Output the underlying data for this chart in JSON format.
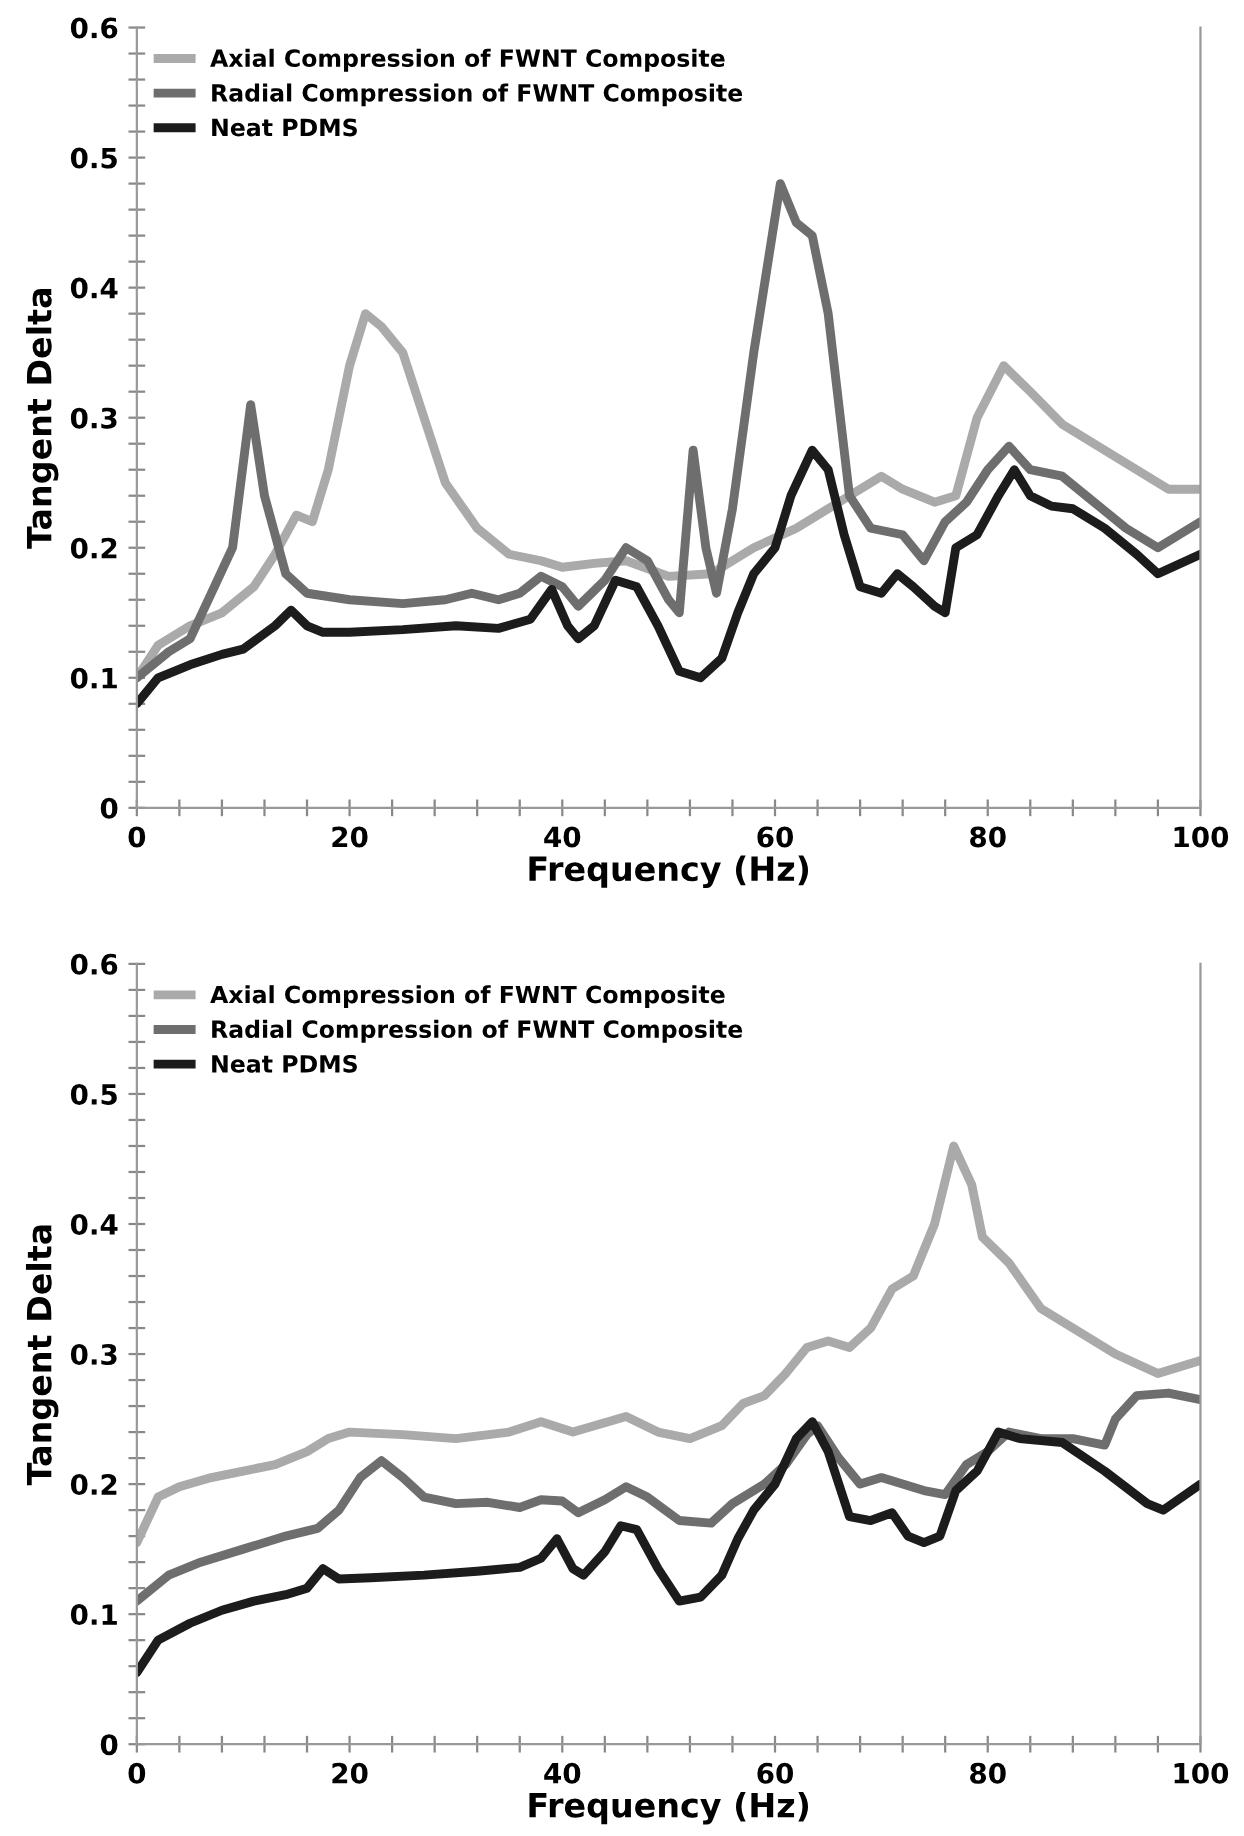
{
  "chart_data": [
    {
      "type": "line",
      "xlabel": "Frequency (Hz)",
      "ylabel": "Tangent Delta",
      "xlim": [
        0,
        100
      ],
      "ylim": [
        0,
        0.6
      ],
      "xticks": [
        0,
        {
          "value": 4,
          "label": null
        },
        {
          "value": 8,
          "label": null
        },
        {
          "value": 12,
          "label": null
        },
        {
          "value": 16,
          "label": null
        },
        20,
        {
          "value": 24,
          "label": null
        },
        {
          "value": 28,
          "label": null
        },
        {
          "value": 32,
          "label": null
        },
        {
          "value": 36,
          "label": null
        },
        40,
        {
          "value": 44,
          "label": null
        },
        {
          "value": 48,
          "label": null
        },
        {
          "value": 52,
          "label": null
        },
        {
          "value": 56,
          "label": null
        },
        60,
        {
          "value": 64,
          "label": null
        },
        {
          "value": 68,
          "label": null
        },
        {
          "value": 72,
          "label": null
        },
        {
          "value": 76,
          "label": null
        },
        80,
        {
          "value": 84,
          "label": null
        },
        {
          "value": 88,
          "label": null
        },
        {
          "value": 92,
          "label": null
        },
        {
          "value": 96,
          "label": null
        },
        100
      ],
      "yticks": [
        0,
        {
          "value": 0.02,
          "label": null
        },
        {
          "value": 0.04,
          "label": null
        },
        {
          "value": 0.06,
          "label": null
        },
        {
          "value": 0.08,
          "label": null
        },
        0.1,
        {
          "value": 0.12,
          "label": null
        },
        {
          "value": 0.14,
          "label": null
        },
        {
          "value": 0.16,
          "label": null
        },
        {
          "value": 0.18,
          "label": null
        },
        0.2,
        {
          "value": 0.22,
          "label": null
        },
        {
          "value": 0.24,
          "label": null
        },
        {
          "value": 0.26,
          "label": null
        },
        {
          "value": 0.28,
          "label": null
        },
        0.3,
        {
          "value": 0.32,
          "label": null
        },
        {
          "value": 0.34,
          "label": null
        },
        {
          "value": 0.36,
          "label": null
        },
        {
          "value": 0.38,
          "label": null
        },
        0.4,
        {
          "value": 0.42,
          "label": null
        },
        {
          "value": 0.44,
          "label": null
        },
        {
          "value": 0.46,
          "label": null
        },
        {
          "value": 0.48,
          "label": null
        },
        0.5,
        {
          "value": 0.52,
          "label": null
        },
        {
          "value": 0.54,
          "label": null
        },
        {
          "value": 0.56,
          "label": null
        },
        {
          "value": 0.58,
          "label": null
        },
        0.6
      ],
      "grid": false,
      "legend": "top left",
      "marker": "none",
      "line_style": "solid",
      "series": [
        {
          "name": "Axial Compression of FWNT Composite",
          "color": "#aaaaaa",
          "x": [
            0,
            2,
            5,
            8,
            11,
            13,
            15,
            16.5,
            18,
            20,
            21.5,
            23,
            25,
            27,
            29,
            32,
            35,
            38,
            40,
            43,
            46,
            50,
            54,
            58,
            62,
            66,
            70,
            72,
            75,
            77,
            79,
            81.5,
            84,
            87,
            90,
            94,
            97,
            100
          ],
          "values": [
            0.1,
            0.125,
            0.14,
            0.15,
            0.17,
            0.195,
            0.225,
            0.22,
            0.26,
            0.34,
            0.38,
            0.37,
            0.35,
            0.3,
            0.25,
            0.215,
            0.195,
            0.19,
            0.185,
            0.188,
            0.19,
            0.178,
            0.18,
            0.2,
            0.215,
            0.235,
            0.255,
            0.245,
            0.235,
            0.24,
            0.3,
            0.34,
            0.32,
            0.295,
            0.28,
            0.26,
            0.245,
            0.245
          ]
        },
        {
          "name": "Radial Compression of FWNT Composite",
          "color": "#6e6e6e",
          "x": [
            0,
            3,
            5,
            7,
            9,
            10.7,
            12,
            14,
            16,
            20,
            25,
            29,
            31.5,
            34,
            36,
            38,
            40,
            41.5,
            44,
            46,
            48,
            50,
            51,
            52.3,
            53.5,
            54.5,
            56,
            58,
            60.5,
            62,
            63.5,
            65,
            67,
            69,
            72,
            74,
            76,
            78,
            80,
            82,
            84,
            87,
            90,
            93,
            96,
            100
          ],
          "values": [
            0.1,
            0.12,
            0.13,
            0.165,
            0.2,
            0.31,
            0.24,
            0.18,
            0.165,
            0.16,
            0.157,
            0.16,
            0.165,
            0.16,
            0.165,
            0.178,
            0.17,
            0.155,
            0.175,
            0.2,
            0.19,
            0.16,
            0.15,
            0.275,
            0.2,
            0.165,
            0.23,
            0.35,
            0.48,
            0.45,
            0.44,
            0.38,
            0.24,
            0.215,
            0.21,
            0.19,
            0.22,
            0.235,
            0.26,
            0.278,
            0.26,
            0.255,
            0.235,
            0.215,
            0.2,
            0.22
          ]
        },
        {
          "name": "Neat PDMS",
          "color": "#1c1c1c",
          "x": [
            0,
            2,
            5,
            8,
            10,
            13,
            14.5,
            16,
            17.5,
            20,
            25,
            30,
            34,
            37,
            39,
            40.5,
            41.5,
            43,
            45,
            47,
            49,
            51,
            53,
            55,
            56.5,
            58,
            60,
            61.5,
            63.5,
            65,
            66.5,
            68,
            70,
            71.5,
            73,
            75,
            76,
            77,
            79,
            81,
            82.5,
            84,
            86,
            88,
            91,
            94,
            96,
            100
          ],
          "values": [
            0.08,
            0.1,
            0.11,
            0.118,
            0.122,
            0.14,
            0.152,
            0.14,
            0.135,
            0.135,
            0.137,
            0.14,
            0.138,
            0.145,
            0.168,
            0.14,
            0.13,
            0.14,
            0.175,
            0.17,
            0.14,
            0.105,
            0.1,
            0.115,
            0.15,
            0.18,
            0.2,
            0.24,
            0.275,
            0.26,
            0.21,
            0.17,
            0.165,
            0.18,
            0.17,
            0.155,
            0.15,
            0.2,
            0.21,
            0.24,
            0.26,
            0.24,
            0.232,
            0.23,
            0.215,
            0.195,
            0.18,
            0.195
          ]
        }
      ]
    },
    {
      "type": "line",
      "xlabel": "Frequency (Hz)",
      "ylabel": "Tangent Delta",
      "xlim": [
        0,
        100
      ],
      "ylim": [
        0,
        0.6
      ],
      "xticks": [
        0,
        {
          "value": 4,
          "label": null
        },
        {
          "value": 8,
          "label": null
        },
        {
          "value": 12,
          "label": null
        },
        {
          "value": 16,
          "label": null
        },
        20,
        {
          "value": 24,
          "label": null
        },
        {
          "value": 28,
          "label": null
        },
        {
          "value": 32,
          "label": null
        },
        {
          "value": 36,
          "label": null
        },
        40,
        {
          "value": 44,
          "label": null
        },
        {
          "value": 48,
          "label": null
        },
        {
          "value": 52,
          "label": null
        },
        {
          "value": 56,
          "label": null
        },
        60,
        {
          "value": 64,
          "label": null
        },
        {
          "value": 68,
          "label": null
        },
        {
          "value": 72,
          "label": null
        },
        {
          "value": 76,
          "label": null
        },
        80,
        {
          "value": 84,
          "label": null
        },
        {
          "value": 88,
          "label": null
        },
        {
          "value": 92,
          "label": null
        },
        {
          "value": 96,
          "label": null
        },
        100
      ],
      "yticks": [
        0,
        {
          "value": 0.02,
          "label": null
        },
        {
          "value": 0.04,
          "label": null
        },
        {
          "value": 0.06,
          "label": null
        },
        {
          "value": 0.08,
          "label": null
        },
        0.1,
        {
          "value": 0.12,
          "label": null
        },
        {
          "value": 0.14,
          "label": null
        },
        {
          "value": 0.16,
          "label": null
        },
        {
          "value": 0.18,
          "label": null
        },
        0.2,
        {
          "value": 0.22,
          "label": null
        },
        {
          "value": 0.24,
          "label": null
        },
        {
          "value": 0.26,
          "label": null
        },
        {
          "value": 0.28,
          "label": null
        },
        0.3,
        {
          "value": 0.32,
          "label": null
        },
        {
          "value": 0.34,
          "label": null
        },
        {
          "value": 0.36,
          "label": null
        },
        {
          "value": 0.38,
          "label": null
        },
        0.4,
        {
          "value": 0.42,
          "label": null
        },
        {
          "value": 0.44,
          "label": null
        },
        {
          "value": 0.46,
          "label": null
        },
        {
          "value": 0.48,
          "label": null
        },
        0.5,
        {
          "value": 0.52,
          "label": null
        },
        {
          "value": 0.54,
          "label": null
        },
        {
          "value": 0.56,
          "label": null
        },
        {
          "value": 0.58,
          "label": null
        },
        0.6
      ],
      "grid": false,
      "legend": "top left",
      "marker": "none",
      "line_style": "solid",
      "series": [
        {
          "name": "Axial Compression of FWNT Composite",
          "color": "#aaaaaa",
          "x": [
            0,
            2,
            4,
            7,
            10,
            13,
            16,
            18,
            20,
            25,
            30,
            35,
            38,
            41,
            46,
            49,
            52,
            55,
            57,
            59,
            61,
            63,
            65,
            67,
            69,
            71,
            73,
            75,
            76.8,
            78.5,
            79.5,
            82,
            85,
            88,
            92,
            96,
            100
          ],
          "values": [
            0.155,
            0.19,
            0.198,
            0.205,
            0.21,
            0.215,
            0.225,
            0.235,
            0.24,
            0.238,
            0.235,
            0.24,
            0.248,
            0.24,
            0.252,
            0.24,
            0.235,
            0.245,
            0.262,
            0.268,
            0.285,
            0.305,
            0.31,
            0.305,
            0.32,
            0.35,
            0.36,
            0.4,
            0.46,
            0.43,
            0.39,
            0.37,
            0.335,
            0.32,
            0.3,
            0.285,
            0.295
          ]
        },
        {
          "name": "Radial Compression of FWNT Composite",
          "color": "#6e6e6e",
          "x": [
            0,
            3,
            6,
            10,
            14,
            17,
            19,
            21,
            23,
            25,
            27,
            30,
            33,
            36,
            38,
            40,
            41.5,
            44,
            46,
            48,
            51,
            54,
            56,
            59,
            61,
            63,
            64,
            66,
            68,
            70,
            72,
            74,
            76,
            78,
            80,
            82,
            85,
            88,
            91,
            92,
            94,
            97,
            100
          ],
          "values": [
            0.11,
            0.13,
            0.14,
            0.15,
            0.16,
            0.166,
            0.18,
            0.205,
            0.218,
            0.205,
            0.19,
            0.185,
            0.186,
            0.182,
            0.188,
            0.187,
            0.178,
            0.188,
            0.198,
            0.19,
            0.172,
            0.17,
            0.185,
            0.2,
            0.215,
            0.238,
            0.245,
            0.22,
            0.2,
            0.205,
            0.2,
            0.195,
            0.192,
            0.215,
            0.225,
            0.24,
            0.235,
            0.235,
            0.23,
            0.25,
            0.268,
            0.27,
            0.265
          ]
        },
        {
          "name": "Neat PDMS",
          "color": "#1c1c1c",
          "x": [
            0,
            2,
            5,
            8,
            11,
            14,
            16,
            17.5,
            19,
            22,
            27,
            32,
            36,
            38,
            39.5,
            41,
            42,
            44,
            45.5,
            47,
            49,
            51,
            53,
            55,
            56.5,
            58,
            60,
            62,
            63.5,
            65,
            67,
            69,
            71,
            72.5,
            74,
            75.5,
            77,
            79,
            81,
            83,
            87,
            91,
            95,
            96.5,
            100
          ],
          "values": [
            0.055,
            0.08,
            0.093,
            0.103,
            0.11,
            0.115,
            0.12,
            0.135,
            0.127,
            0.128,
            0.13,
            0.133,
            0.136,
            0.143,
            0.158,
            0.135,
            0.13,
            0.148,
            0.168,
            0.165,
            0.135,
            0.11,
            0.113,
            0.13,
            0.158,
            0.18,
            0.2,
            0.235,
            0.248,
            0.225,
            0.175,
            0.172,
            0.178,
            0.16,
            0.155,
            0.16,
            0.195,
            0.21,
            0.24,
            0.235,
            0.232,
            0.21,
            0.185,
            0.18,
            0.2
          ]
        }
      ]
    }
  ]
}
